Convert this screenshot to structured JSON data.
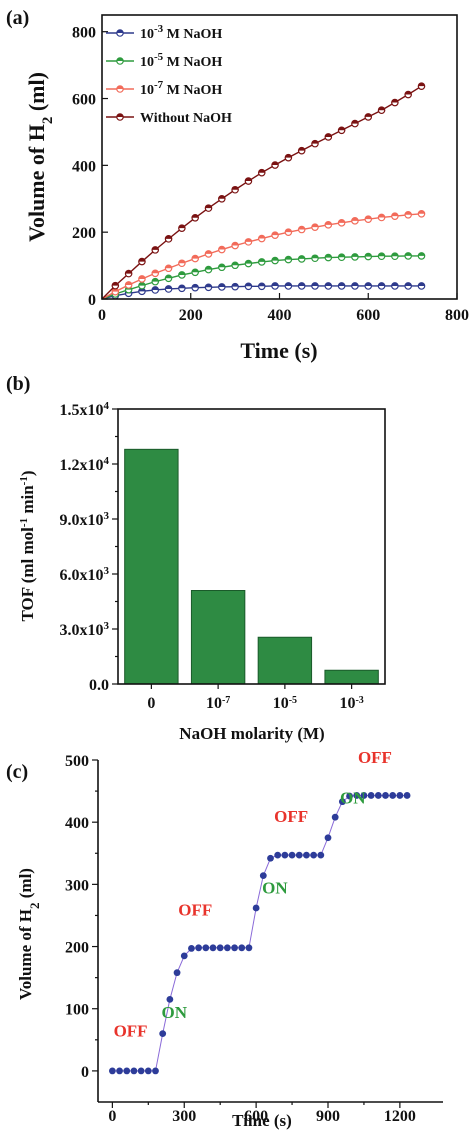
{
  "colors": {
    "blue": "#2e3a8c",
    "green": "#2e9b3e",
    "orange": "#f26b5a",
    "darkred": "#7a1212",
    "bar": "#2e8b43",
    "bar_edge": "#1a5a2a",
    "point_c": "#2d3c99",
    "line_c": "#8a6ad8",
    "off": "#e8332b",
    "on": "#2e9b3e"
  },
  "chart_data": [
    {
      "panel": "(a)",
      "type": "line",
      "xlabel": "Time (s)",
      "ylabel": {
        "prefix": "Volume of H",
        "sub": "2",
        "suffix": " (ml)"
      },
      "xlim": [
        0,
        800
      ],
      "ylim": [
        0,
        850
      ],
      "xticks": [
        0,
        200,
        400,
        600,
        800
      ],
      "xtick_labels": [
        "0",
        "200",
        "400",
        "600",
        "800"
      ],
      "yticks": [
        0,
        200,
        400,
        600,
        800
      ],
      "ytick_labels": [
        "0",
        "200",
        "400",
        "600",
        "800"
      ],
      "legend": "top-left",
      "series": [
        {
          "name": {
            "pre": "10",
            "sup": "-3",
            "post": " M NaOH"
          },
          "color_key": "blue",
          "x": [
            0,
            30,
            60,
            90,
            120,
            150,
            180,
            210,
            240,
            270,
            300,
            330,
            360,
            390,
            420,
            450,
            480,
            510,
            540,
            570,
            600,
            630,
            660,
            690,
            720
          ],
          "y": [
            0,
            10,
            17,
            23,
            27,
            30,
            32,
            34,
            35,
            36,
            37,
            38,
            38,
            39,
            39,
            39,
            39,
            39,
            39,
            39,
            39,
            39,
            39,
            39,
            39
          ]
        },
        {
          "name": {
            "pre": "10",
            "sup": "-5",
            "post": " M NaOH"
          },
          "color_key": "green",
          "x": [
            0,
            30,
            60,
            90,
            120,
            150,
            180,
            210,
            240,
            270,
            300,
            330,
            360,
            390,
            420,
            450,
            480,
            510,
            540,
            570,
            600,
            630,
            660,
            690,
            720
          ],
          "y": [
            0,
            15,
            28,
            40,
            52,
            62,
            72,
            80,
            88,
            95,
            101,
            106,
            111,
            115,
            118,
            120,
            122,
            124,
            125,
            126,
            127,
            128,
            128,
            129,
            129
          ]
        },
        {
          "name": {
            "pre": "10",
            "sup": "-7",
            "post": " M NaOH"
          },
          "color_key": "orange",
          "x": [
            0,
            30,
            60,
            90,
            120,
            150,
            180,
            210,
            240,
            270,
            300,
            330,
            360,
            390,
            420,
            450,
            480,
            510,
            540,
            570,
            600,
            630,
            660,
            690,
            720
          ],
          "y": [
            0,
            22,
            42,
            60,
            77,
            92,
            107,
            121,
            135,
            148,
            160,
            171,
            181,
            191,
            200,
            208,
            215,
            222,
            228,
            234,
            239,
            244,
            248,
            252,
            255
          ]
        },
        {
          "name": {
            "pre": "Without NaOH",
            "sup": "",
            "post": ""
          },
          "color_key": "darkred",
          "x": [
            0,
            30,
            60,
            90,
            120,
            150,
            180,
            210,
            240,
            270,
            300,
            330,
            360,
            390,
            420,
            450,
            480,
            510,
            540,
            570,
            600,
            630,
            660,
            690,
            720
          ],
          "y": [
            0,
            40,
            76,
            112,
            147,
            180,
            212,
            243,
            272,
            300,
            327,
            353,
            378,
            401,
            423,
            444,
            465,
            485,
            505,
            525,
            545,
            565,
            588,
            612,
            637
          ]
        }
      ]
    },
    {
      "panel": "(b)",
      "type": "bar",
      "xlabel": "NaOH molarity (M)",
      "ylabel": {
        "a": "TOF (ml mol",
        "s1": "-1",
        "b": " min",
        "s2": "-1",
        "c": ")"
      },
      "ylim": [
        0,
        15000
      ],
      "yticks": [
        0,
        3000,
        6000,
        9000,
        12000,
        15000
      ],
      "ytick_labels": [
        {
          "m": "0.0",
          "e": ""
        },
        {
          "m": "3.0x10",
          "e": "3"
        },
        {
          "m": "6.0x10",
          "e": "3"
        },
        {
          "m": "9.0x10",
          "e": "3"
        },
        {
          "m": "1.2x10",
          "e": "4"
        },
        {
          "m": "1.5x10",
          "e": "4"
        }
      ],
      "categories": [
        {
          "base": "0",
          "exp": ""
        },
        {
          "base": "10",
          "exp": "-7"
        },
        {
          "base": "10",
          "exp": "-5"
        },
        {
          "base": "10",
          "exp": "-3"
        }
      ],
      "values": [
        12800,
        5100,
        2550,
        750
      ]
    },
    {
      "panel": "(c)",
      "type": "scatter",
      "xlabel": "Time (s)",
      "ylabel": {
        "prefix": "Volume of H",
        "sub": "2",
        "suffix": " (ml)"
      },
      "xlim": [
        -60,
        1380
      ],
      "ylim": [
        -50,
        500
      ],
      "xticks": [
        0,
        300,
        600,
        900,
        1200
      ],
      "xtick_labels": [
        "0",
        "300",
        "600",
        "900",
        "1200"
      ],
      "yticks": [
        0,
        100,
        200,
        300,
        400,
        500
      ],
      "ytick_labels": [
        "0",
        "100",
        "200",
        "300",
        "400",
        "500"
      ],
      "x": [
        0,
        30,
        60,
        90,
        120,
        150,
        180,
        210,
        240,
        270,
        300,
        330,
        360,
        390,
        420,
        450,
        480,
        510,
        540,
        570,
        600,
        630,
        660,
        690,
        720,
        750,
        780,
        810,
        840,
        870,
        900,
        930,
        960,
        990,
        1020,
        1050,
        1080,
        1110,
        1140,
        1170,
        1200,
        1230
      ],
      "y": [
        0,
        0,
        0,
        0,
        0,
        0,
        0,
        60,
        115,
        158,
        185,
        197,
        198,
        198,
        198,
        198,
        198,
        198,
        198,
        198,
        262,
        314,
        342,
        347,
        347,
        347,
        347,
        347,
        347,
        347,
        375,
        408,
        433,
        442,
        443,
        443,
        443,
        443,
        443,
        443,
        443,
        443
      ],
      "annotations": [
        {
          "text": "OFF",
          "x": 5,
          "y": 55,
          "color_key": "off"
        },
        {
          "text": "ON",
          "x": 205,
          "y": 85,
          "color_key": "on"
        },
        {
          "text": "OFF",
          "x": 275,
          "y": 250,
          "color_key": "off"
        },
        {
          "text": "ON",
          "x": 625,
          "y": 285,
          "color_key": "on"
        },
        {
          "text": "OFF",
          "x": 675,
          "y": 400,
          "color_key": "off"
        },
        {
          "text": "ON",
          "x": 950,
          "y": 430,
          "color_key": "on"
        },
        {
          "text": "OFF",
          "x": 1025,
          "y": 495,
          "color_key": "off"
        }
      ]
    }
  ]
}
